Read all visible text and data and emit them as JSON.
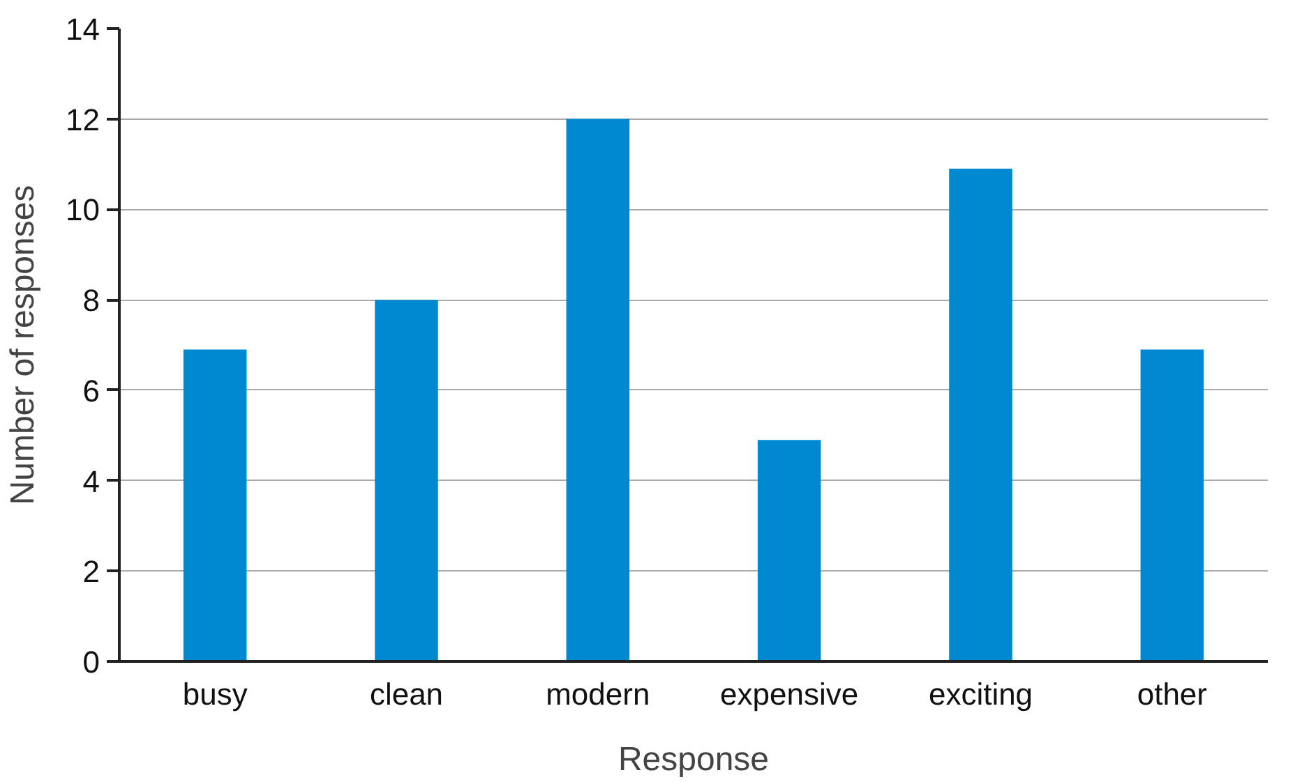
{
  "chart_data": {
    "type": "bar",
    "xlabel": "Response",
    "ylabel": "Number of responses",
    "categories": [
      "busy",
      "clean",
      "modern",
      "expensive",
      "exciting",
      "other"
    ],
    "values": [
      6.9,
      8,
      12,
      4.9,
      10.9,
      6.9
    ],
    "color": "#0088d1",
    "ylim": [
      0,
      14
    ],
    "yticks": [
      0,
      2,
      4,
      6,
      8,
      10,
      12,
      14
    ],
    "grid": "y"
  }
}
